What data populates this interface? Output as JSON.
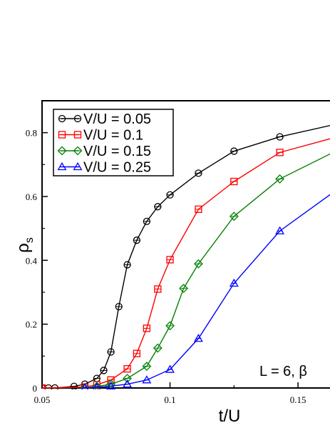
{
  "chart_data": {
    "type": "line",
    "xlabel": "t/U",
    "ylabel": "ρ",
    "ylabel_sub": "s",
    "xlim": [
      0.05,
      0.1625
    ],
    "ylim": [
      0,
      0.9
    ],
    "x_ticks": [
      0.05,
      0.1,
      0.15
    ],
    "x_tick_labels": [
      "0.05",
      "0.1",
      "0.15"
    ],
    "y_ticks": [
      0,
      0.2,
      0.4,
      0.6,
      0.8
    ],
    "y_tick_labels": [
      "0",
      "0.2",
      "0.4",
      "0.6",
      "0.8"
    ],
    "annotation": "L = 6, β",
    "legend_position": "top-left",
    "grid": false,
    "series": [
      {
        "name": "V/U = 0.05",
        "color": "#000000",
        "marker": "circle",
        "x": [
          0.05,
          0.0525,
          0.055,
          0.0625,
          0.0667,
          0.0714,
          0.0741,
          0.0769,
          0.08,
          0.0833,
          0.087,
          0.0909,
          0.0952,
          0.1,
          0.1111,
          0.125,
          0.1429,
          0.1667
        ],
        "y": [
          0.0,
          0.0,
          0.0,
          0.005,
          0.012,
          0.03,
          0.055,
          0.113,
          0.255,
          0.386,
          0.463,
          0.522,
          0.568,
          0.605,
          0.673,
          0.742,
          0.787,
          0.83
        ]
      },
      {
        "name": "V/U = 0.1",
        "color": "#ff0000",
        "marker": "square",
        "x": [
          0.05,
          0.0667,
          0.0714,
          0.0769,
          0.0833,
          0.087,
          0.0909,
          0.0952,
          0.1,
          0.1111,
          0.125,
          0.1429,
          0.1667
        ],
        "y": [
          0.0,
          0.003,
          0.01,
          0.025,
          0.06,
          0.108,
          0.187,
          0.31,
          0.402,
          0.56,
          0.647,
          0.738,
          0.79
        ]
      },
      {
        "name": "V/U = 0.15",
        "color": "#008000",
        "marker": "diamond",
        "x": [
          0.0667,
          0.0714,
          0.0769,
          0.0833,
          0.0909,
          0.0952,
          0.1,
          0.1053,
          0.1111,
          0.125,
          0.1429,
          0.1667
        ],
        "y": [
          0.0,
          0.005,
          0.012,
          0.03,
          0.068,
          0.125,
          0.195,
          0.312,
          0.389,
          0.538,
          0.655,
          0.75
        ]
      },
      {
        "name": "V/U = 0.25",
        "color": "#0000ff",
        "marker": "triangle",
        "x": [
          0.0667,
          0.0714,
          0.0769,
          0.0833,
          0.0909,
          0.1,
          0.1111,
          0.125,
          0.1429,
          0.1667
        ],
        "y": [
          0.0,
          0.002,
          0.006,
          0.012,
          0.025,
          0.058,
          0.155,
          0.328,
          0.492,
          0.63
        ]
      }
    ]
  }
}
